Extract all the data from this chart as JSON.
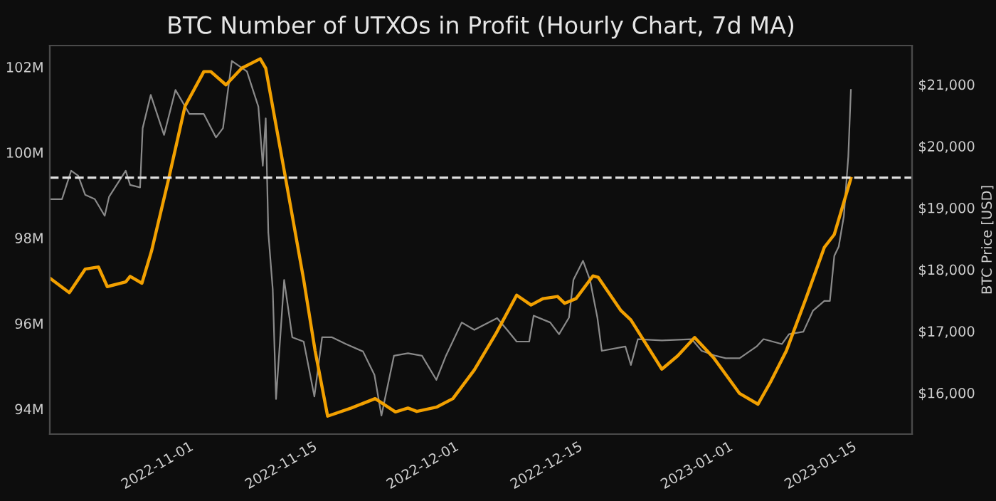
{
  "chart_data": {
    "type": "line",
    "title": "BTC Number of UTXOs in Profit (Hourly Chart, 7d MA)",
    "y2label": "BTC Price [USD]",
    "xlim": [
      "2022-10-15T12:00",
      "2023-01-21T00:00"
    ],
    "xticks": [
      "2022-11-01",
      "2022-11-15",
      "2022-12-01",
      "2022-12-15",
      "2023-01-01",
      "2023-01-15"
    ],
    "ylim": [
      93.41,
      102.5
    ],
    "yticks": [
      {
        "value": 94,
        "label": "94M"
      },
      {
        "value": 96,
        "label": "96M"
      },
      {
        "value": 98,
        "label": "98M"
      },
      {
        "value": 100,
        "label": "100M"
      },
      {
        "value": 102,
        "label": "102M"
      }
    ],
    "y2lim": [
      15330,
      21630
    ],
    "y2ticks": [
      {
        "value": 16000,
        "label": "$16,000"
      },
      {
        "value": 17000,
        "label": "$17,000"
      },
      {
        "value": 18000,
        "label": "$18,000"
      },
      {
        "value": 19000,
        "label": "$19,000"
      },
      {
        "value": 20000,
        "label": "$20,000"
      },
      {
        "value": 21000,
        "label": "$21,000"
      }
    ],
    "grid": false,
    "line_style": "solid",
    "marker": "none",
    "ref_lines": [
      {
        "axis": "y",
        "value": 99.41,
        "color": "#e0e0e0",
        "line_style": "dashed"
      }
    ],
    "series": [
      {
        "color": "#8a8a8a",
        "axis": "y2",
        "x": [
          "2022-10-15T12:00",
          "2022-10-16T21:00",
          "2022-10-17T22:00",
          "2022-10-18T17:00",
          "2022-10-19T12:00",
          "2022-10-20T14:00",
          "2022-10-21T17:00",
          "2022-10-22T05:00",
          "2022-10-24T02:00",
          "2022-10-24T14:00",
          "2022-10-25T17:00",
          "2022-10-26T00:00",
          "2022-10-26T22:00",
          "2022-10-28T10:00",
          "2022-10-29T17:00",
          "2022-10-31T07:00",
          "2022-11-01T22:00",
          "2022-11-03T07:00",
          "2022-11-04T02:00",
          "2022-11-05T02:00",
          "2022-11-06T19:00",
          "2022-11-08T02:00",
          "2022-11-08T14:00",
          "2022-11-08T22:00",
          "2022-11-09T05:00",
          "2022-11-09T17:00",
          "2022-11-10T02:00",
          "2022-11-11T00:00",
          "2022-11-11T22:00",
          "2022-11-13T05:00",
          "2022-11-14T10:00",
          "2022-11-15T07:00",
          "2022-11-16T10:00",
          "2022-11-18T00:00",
          "2022-11-19T22:00",
          "2022-11-21T05:00",
          "2022-11-22T00:00",
          "2022-11-23T10:00",
          "2022-11-25T00:00",
          "2022-11-26T14:00",
          "2022-11-28T05:00",
          "2022-11-29T07:00",
          "2022-12-01T02:00",
          "2022-12-02T12:00",
          "2022-12-05T02:00",
          "2022-12-06T05:00",
          "2022-12-07T07:00",
          "2022-12-08T17:00",
          "2022-12-09T05:00",
          "2022-12-11T02:00",
          "2022-12-12T02:00",
          "2022-12-13T05:00",
          "2022-12-13T17:00",
          "2022-12-14T19:00",
          "2022-12-15T14:00",
          "2022-12-16T10:00",
          "2022-12-16T22:00",
          "2022-12-19T14:00",
          "2022-12-20T05:00",
          "2022-12-21T00:00",
          "2022-12-23T17:00",
          "2022-12-27T02:00",
          "2022-12-28T05:00",
          "2022-12-29T19:00",
          "2022-12-30T22:00",
          "2023-01-01T12:00",
          "2023-01-03T10:00",
          "2023-01-04T05:00",
          "2023-01-06T07:00",
          "2023-01-07T02:00",
          "2023-01-08T17:00",
          "2023-01-09T19:00",
          "2023-01-11T02:00",
          "2023-01-11T17:00",
          "2023-01-12T05:00",
          "2023-01-12T17:00",
          "2023-01-13T07:00",
          "2023-01-13T19:00",
          "2023-01-14T02:00"
        ],
        "values": [
          19140,
          19140,
          19600,
          19520,
          19210,
          19140,
          18870,
          19180,
          19600,
          19370,
          19330,
          20290,
          20830,
          20180,
          20910,
          20520,
          20520,
          20140,
          20290,
          21380,
          21210,
          20640,
          19680,
          20450,
          18600,
          17680,
          15900,
          17830,
          16900,
          16830,
          15940,
          16900,
          16900,
          16790,
          16670,
          16290,
          15630,
          16600,
          16640,
          16600,
          16210,
          16600,
          17140,
          17020,
          17210,
          17020,
          16830,
          16830,
          17250,
          17140,
          16950,
          17220,
          17830,
          18140,
          17830,
          17220,
          16680,
          16750,
          16450,
          16870,
          16850,
          16870,
          16680,
          16600,
          16560,
          16560,
          16750,
          16870,
          16790,
          16950,
          16990,
          17330,
          17490,
          17490,
          18220,
          18370,
          18870,
          19830,
          20910
        ]
      },
      {
        "color": "#f2a000",
        "axis": "y",
        "x": [
          "2022-10-15T12:00",
          "2022-10-17T17:00",
          "2022-10-19T12:00",
          "2022-10-21T00:00",
          "2022-10-22T00:00",
          "2022-10-24T02:00",
          "2022-10-24T14:00",
          "2022-10-25T22:00",
          "2022-10-27T00:00",
          "2022-10-28T22:00",
          "2022-10-30T19:00",
          "2022-11-01T22:00",
          "2022-11-02T17:00",
          "2022-11-04T10:00",
          "2022-11-06T05:00",
          "2022-11-08T07:00",
          "2022-11-08T22:00",
          "2022-11-11T00:00",
          "2022-11-13T05:00",
          "2022-11-14T12:00",
          "2022-11-15T22:00",
          "2022-11-18T14:00",
          "2022-11-21T07:00",
          "2022-11-23T14:00",
          "2022-11-25T00:00",
          "2022-11-26T00:00",
          "2022-11-28T05:00",
          "2022-11-30T02:00",
          "2022-12-02T12:00",
          "2022-12-05T00:00",
          "2022-12-07T07:00",
          "2022-12-08T22:00",
          "2022-12-10T07:00",
          "2022-12-11T22:00",
          "2022-12-12T17:00",
          "2022-12-14T00:00",
          "2022-12-15T22:00",
          "2022-12-16T12:00",
          "2022-12-19T02:00",
          "2022-12-20T05:00",
          "2022-12-23T17:00",
          "2022-12-25T12:00",
          "2022-12-27T10:00",
          "2022-12-29T14:00",
          "2023-01-01T12:00",
          "2023-01-03T14:00",
          "2023-01-05T00:00",
          "2023-01-06T19:00",
          "2023-01-09T00:00",
          "2023-01-11T02:00",
          "2023-01-12T05:00",
          "2023-01-14T02:00"
        ],
        "values": [
          97.06,
          96.72,
          97.27,
          97.32,
          96.86,
          96.97,
          97.1,
          96.94,
          97.69,
          99.36,
          101.08,
          101.89,
          101.89,
          101.58,
          101.97,
          102.19,
          101.97,
          99.58,
          97.02,
          95.36,
          93.83,
          94.02,
          94.24,
          93.93,
          94.02,
          93.94,
          94.04,
          94.24,
          94.91,
          95.78,
          96.66,
          96.43,
          96.58,
          96.63,
          96.47,
          96.58,
          97.11,
          97.08,
          96.3,
          96.08,
          94.93,
          95.24,
          95.67,
          95.19,
          94.36,
          94.11,
          94.63,
          95.36,
          96.58,
          97.78,
          98.08,
          99.39
        ]
      }
    ]
  }
}
